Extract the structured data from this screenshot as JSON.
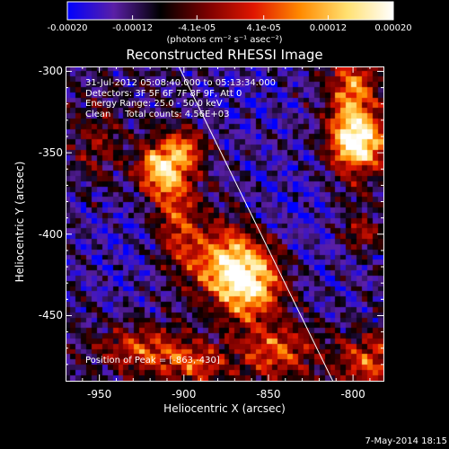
{
  "colorbar": {
    "ticks": [
      "-0.00020",
      "-0.00012",
      "-4.1e-05",
      "4.1e-05",
      "0.00012",
      "0.00020"
    ],
    "tick_values": [
      -0.0002,
      -0.00012,
      -4.1e-05,
      4.1e-05,
      0.00012,
      0.0002
    ],
    "range": [
      -0.0002,
      0.0002
    ],
    "units": "(photons cm⁻² s⁻¹ asec⁻²)",
    "colors": [
      "#0000ff",
      "#5a1fa6",
      "#000000",
      "#7a0000",
      "#e01600",
      "#ff8a00",
      "#ffe070",
      "#ffffff"
    ]
  },
  "annotations": {
    "line1": "31-Jul-2012 05:08:40.000 to 05:13:34.000",
    "line2": "Detectors: 3F 5F 6F 7F 8F 9F, Att 0",
    "line3": "Energy Range: 25.0 - 50.0 keV",
    "line4": "Clean     Total counts: 4.56E+03",
    "peak": "Position of Peak = [-863,-430]"
  },
  "footer": {
    "date": "7-May-2014 18:15"
  },
  "chart_data": {
    "type": "heatmap",
    "title": "Reconstructed RHESSI Image",
    "xlabel": "Heliocentric X (arcsec)",
    "ylabel": "Heliocentric Y (arcsec)",
    "xlim": [
      -970,
      -782
    ],
    "ylim": [
      -490,
      -297
    ],
    "x_ticks": [
      -950,
      -900,
      -850,
      -800
    ],
    "x_tick_labels": [
      "-950",
      "-900",
      "-850",
      "-800"
    ],
    "y_ticks": [
      -300,
      -350,
      -400,
      -450
    ],
    "y_tick_labels": [
      "-300",
      "-350",
      "-400",
      "-450"
    ],
    "limb_line": [
      [
        -903,
        -297
      ],
      [
        -812,
        -490
      ]
    ],
    "peak_position": [
      -863,
      -430
    ],
    "bright_regions": [
      {
        "x": -862,
        "y": -432,
        "sx": 14,
        "sy": 14,
        "a": 1.0
      },
      {
        "x": -875,
        "y": -415,
        "sx": 18,
        "sy": 16,
        "a": 0.8
      },
      {
        "x": -905,
        "y": -382,
        "sx": 10,
        "sy": 26,
        "a": 0.65
      },
      {
        "x": -915,
        "y": -360,
        "sx": 9,
        "sy": 10,
        "a": 0.9
      },
      {
        "x": -898,
        "y": -348,
        "sx": 8,
        "sy": 8,
        "a": 0.55
      },
      {
        "x": -800,
        "y": -325,
        "sx": 10,
        "sy": 28,
        "a": 0.9
      },
      {
        "x": -795,
        "y": -345,
        "sx": 12,
        "sy": 10,
        "a": 0.75
      },
      {
        "x": -925,
        "y": -470,
        "sx": 18,
        "sy": 10,
        "a": 0.6
      },
      {
        "x": -895,
        "y": -480,
        "sx": 14,
        "sy": 9,
        "a": 0.55
      },
      {
        "x": -845,
        "y": -472,
        "sx": 16,
        "sy": 12,
        "a": 0.65
      },
      {
        "x": -790,
        "y": -478,
        "sx": 14,
        "sy": 12,
        "a": 0.6
      },
      {
        "x": -795,
        "y": -400,
        "sx": 8,
        "sy": 8,
        "a": 0.45
      },
      {
        "x": -950,
        "y": -345,
        "sx": 10,
        "sy": 16,
        "a": 0.35
      }
    ],
    "dark_regions": [
      {
        "x": -930,
        "y": -410,
        "sx": 28,
        "sy": 30,
        "a": 1.0
      },
      {
        "x": -835,
        "y": -385,
        "sx": 24,
        "sy": 26,
        "a": 1.0
      },
      {
        "x": -860,
        "y": -320,
        "sx": 24,
        "sy": 20,
        "a": 0.9
      },
      {
        "x": -810,
        "y": -430,
        "sx": 18,
        "sy": 18,
        "a": 0.6
      }
    ]
  }
}
